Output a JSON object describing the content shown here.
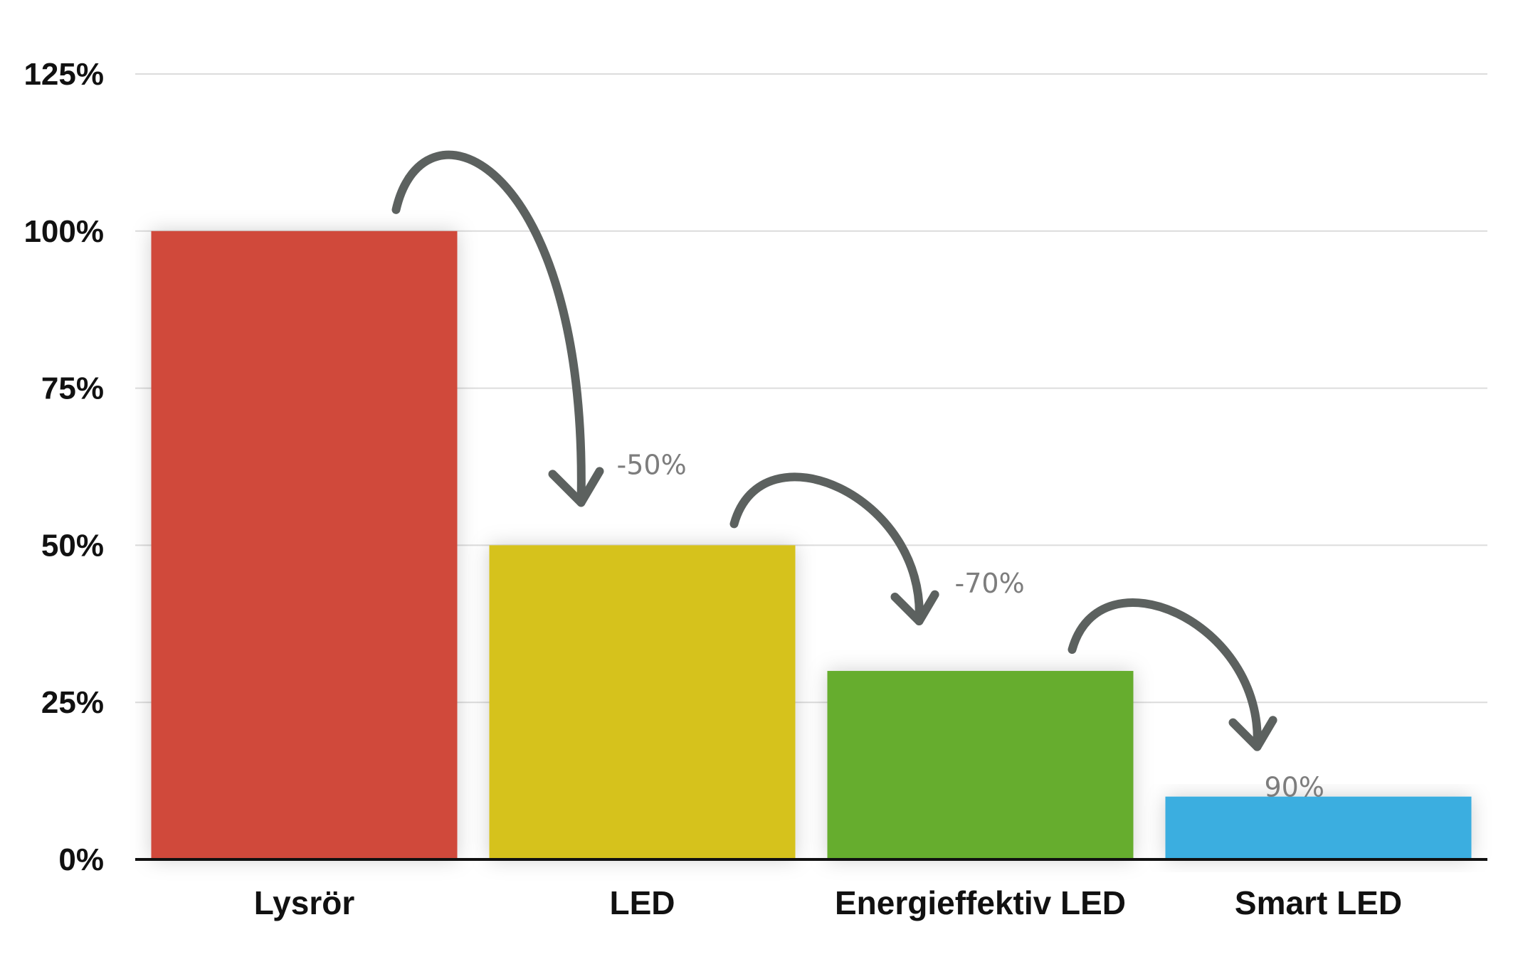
{
  "chart_data": {
    "type": "bar",
    "categories": [
      "Lysrör",
      "LED",
      "Energieffektiv LED",
      "Smart LED"
    ],
    "values": [
      100,
      50,
      30,
      10
    ],
    "colors": [
      "#d04a3a",
      "#d6c21e",
      "#66ad2e",
      "#3aaee0"
    ],
    "yticks": [
      "0%",
      "25%",
      "50%",
      "75%",
      "100%",
      "125%"
    ],
    "ylim": [
      0,
      125
    ],
    "grid": true,
    "annotations": [
      {
        "label": "-50%",
        "from": "Lysrör",
        "to": "LED"
      },
      {
        "label": "-70%",
        "from": "LED",
        "to": "Energieffektiv LED"
      },
      {
        "label": "90%",
        "from": "Energieffektiv LED",
        "to": "Smart LED"
      }
    ]
  }
}
